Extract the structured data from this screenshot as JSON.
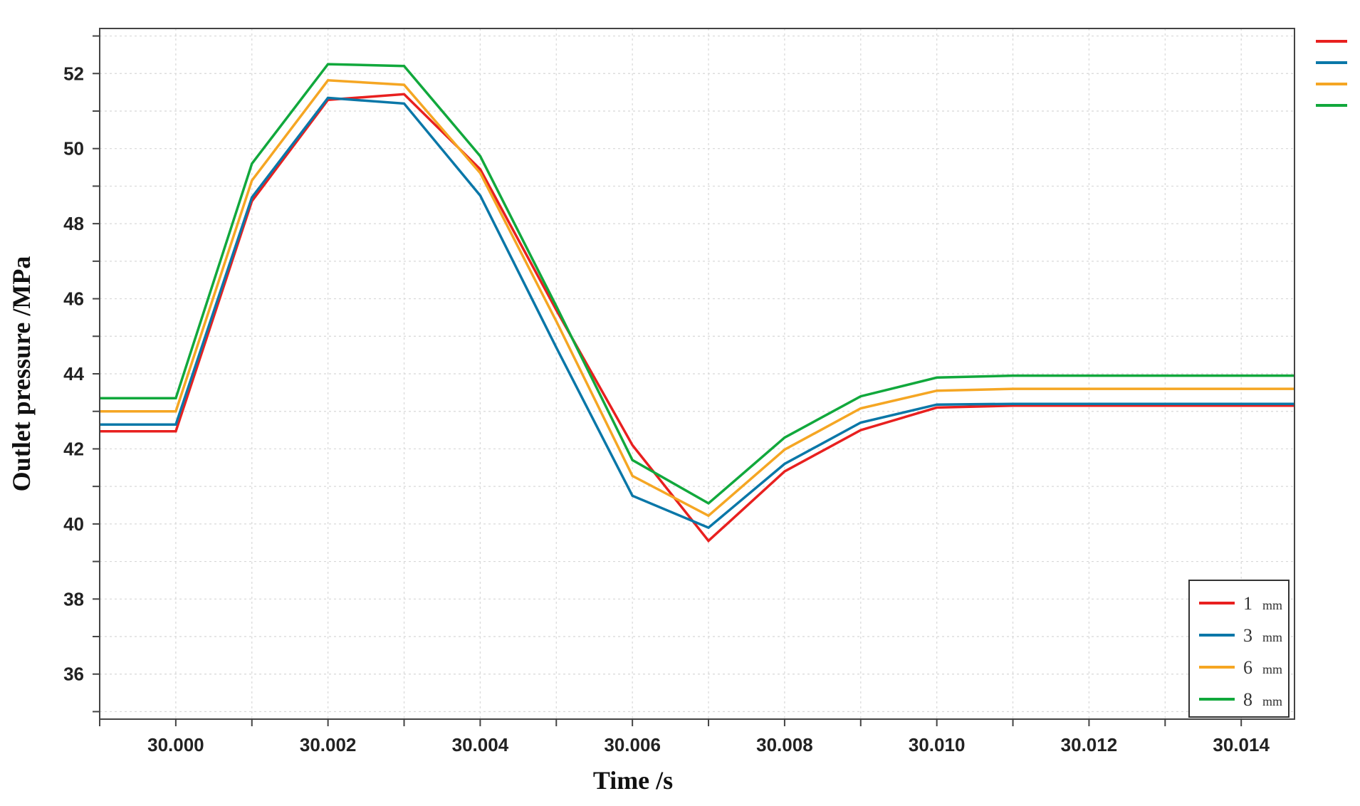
{
  "chart_data": {
    "type": "line",
    "xlabel": "Time /s",
    "ylabel": "Outlet pressure /MPa",
    "xlim": [
      29.999,
      30.0147
    ],
    "ylim": [
      34.8,
      53.2
    ],
    "x_ticks": [
      "30.000",
      "30.002",
      "30.004",
      "30.006",
      "30.008",
      "30.010",
      "30.012",
      "30.014"
    ],
    "y_ticks": [
      "36",
      "38",
      "40",
      "42",
      "44",
      "46",
      "48",
      "50",
      "52"
    ],
    "grid": true,
    "legend_position": "bottom-right",
    "x": [
      29.999,
      30.0,
      30.001,
      30.002,
      30.003,
      30.004,
      30.005,
      30.006,
      30.007,
      30.008,
      30.009,
      30.01,
      30.011,
      30.012,
      30.013,
      30.014,
      30.0147
    ],
    "series": [
      {
        "name": "1",
        "unit": "mm",
        "color": "#e8201f",
        "values": [
          42.47,
          42.47,
          48.6,
          51.3,
          51.45,
          49.45,
          45.7,
          42.1,
          39.55,
          41.4,
          42.5,
          43.1,
          43.15,
          43.15,
          43.15,
          43.15,
          43.15
        ]
      },
      {
        "name": "3",
        "unit": "mm",
        "color": "#0a77a8",
        "values": [
          42.65,
          42.65,
          48.7,
          51.35,
          51.2,
          48.75,
          44.7,
          40.75,
          39.9,
          41.6,
          42.7,
          43.18,
          43.2,
          43.2,
          43.2,
          43.2,
          43.2
        ]
      },
      {
        "name": "6",
        "unit": "mm",
        "color": "#f5a623",
        "values": [
          43.0,
          43.0,
          49.15,
          51.82,
          51.7,
          49.35,
          45.4,
          41.28,
          40.22,
          41.98,
          43.08,
          43.55,
          43.6,
          43.6,
          43.6,
          43.6,
          43.6
        ]
      },
      {
        "name": "8",
        "unit": "mm",
        "color": "#11a83c",
        "values": [
          43.35,
          43.35,
          49.6,
          52.25,
          52.2,
          49.8,
          45.8,
          41.7,
          40.55,
          42.3,
          43.4,
          43.9,
          43.95,
          43.95,
          43.95,
          43.95,
          43.95
        ]
      }
    ]
  }
}
